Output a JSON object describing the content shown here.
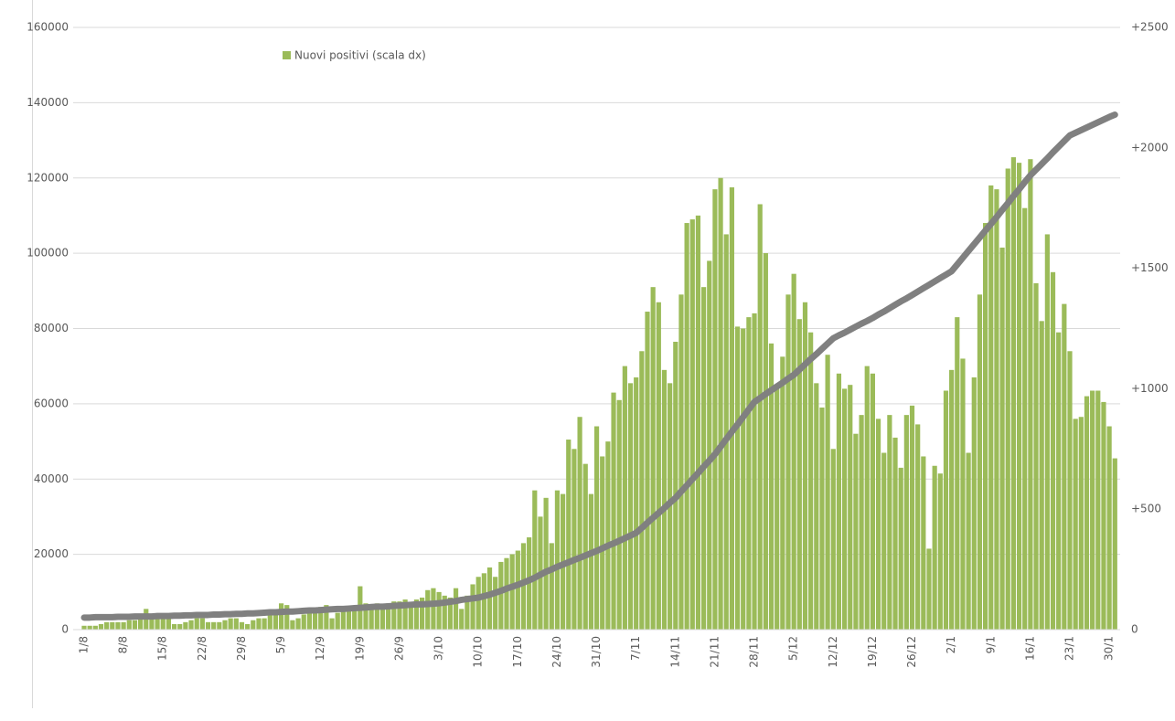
{
  "chart_data": {
    "type": "bar_line",
    "categories": [
      "1/8",
      null,
      null,
      null,
      null,
      null,
      null,
      "8/8",
      null,
      null,
      null,
      null,
      null,
      null,
      "15/8",
      null,
      null,
      null,
      null,
      null,
      null,
      "22/8",
      null,
      null,
      null,
      null,
      null,
      null,
      "29/8",
      null,
      null,
      null,
      null,
      null,
      null,
      "5/9",
      null,
      null,
      null,
      null,
      null,
      null,
      "12/9",
      null,
      null,
      null,
      null,
      null,
      null,
      "19/9",
      null,
      null,
      null,
      null,
      null,
      null,
      "26/9",
      null,
      null,
      null,
      null,
      null,
      null,
      "3/10",
      null,
      null,
      null,
      null,
      null,
      null,
      "10/10",
      null,
      null,
      null,
      null,
      null,
      null,
      "17/10",
      null,
      null,
      null,
      null,
      null,
      null,
      "24/10",
      null,
      null,
      null,
      null,
      null,
      null,
      "31/10",
      null,
      null,
      null,
      null,
      null,
      null,
      "7/11",
      null,
      null,
      null,
      null,
      null,
      null,
      "14/11",
      null,
      null,
      null,
      null,
      null,
      null,
      "21/11",
      null,
      null,
      null,
      null,
      null,
      null,
      "28/11",
      null,
      null,
      null,
      null,
      null,
      null,
      "5/12",
      null,
      null,
      null,
      null,
      null,
      null,
      "12/12",
      null,
      null,
      null,
      null,
      null,
      null,
      "19/12",
      null,
      null,
      null,
      null,
      null,
      null,
      "26/12",
      null,
      null,
      null,
      null,
      null,
      null,
      "2/1",
      null,
      null,
      null,
      null,
      null,
      null,
      "9/1",
      null,
      null,
      null,
      null,
      null,
      null,
      "16/1",
      null,
      null,
      null,
      null,
      null,
      null,
      "23/1",
      null,
      null,
      null,
      null,
      null,
      null,
      "30/1",
      null
    ],
    "series": [
      {
        "name": "Nuovi positivi (scala dx)",
        "type": "bar",
        "axis": "y2",
        "color": "#9bbb59",
        "values": [
          16,
          16,
          16,
          23,
          31,
          31,
          31,
          31,
          39,
          39,
          47,
          86,
          47,
          47,
          47,
          47,
          23,
          23,
          31,
          39,
          47,
          47,
          31,
          31,
          31,
          39,
          47,
          47,
          31,
          23,
          39,
          47,
          47,
          63,
          63,
          109,
          102,
          39,
          47,
          63,
          70,
          78,
          94,
          102,
          47,
          70,
          78,
          78,
          86,
          180,
          109,
          102,
          109,
          102,
          109,
          117,
          117,
          125,
          102,
          125,
          133,
          164,
          172,
          156,
          141,
          133,
          172,
          86,
          141,
          188,
          219,
          234,
          258,
          219,
          281,
          297,
          313,
          328,
          359,
          383,
          578,
          469,
          547,
          359,
          578,
          563,
          789,
          750,
          883,
          688,
          563,
          844,
          719,
          781,
          984,
          953,
          1094,
          1023,
          1047,
          1156,
          1320,
          1422,
          1359,
          1078,
          1023,
          1195,
          1391,
          1688,
          1703,
          1719,
          1422,
          1531,
          1828,
          1875,
          1641,
          1836,
          1258,
          1250,
          1297,
          1313,
          1766,
          1563,
          1188,
          1016,
          1133,
          1391,
          1477,
          1289,
          1359,
          1234,
          1023,
          922,
          1141,
          750,
          1063,
          1000,
          1016,
          813,
          891,
          1094,
          1063,
          875,
          734,
          891,
          797,
          672,
          891,
          930,
          852,
          719,
          336,
          680,
          648,
          992,
          1078,
          1297,
          1125,
          734,
          1047,
          1391,
          1688,
          1844,
          1828,
          1586,
          1914,
          1961,
          1938,
          1750,
          1953,
          1438,
          1281,
          1641,
          1484,
          1234,
          1352,
          1156,
          875,
          883,
          969,
          992,
          992,
          945,
          844,
          711
        ]
      },
      {
        "type": "line",
        "axis": "y",
        "color": "#808080",
        "values": [
          3200,
          3200,
          3300,
          3300,
          3300,
          3300,
          3400,
          3400,
          3400,
          3500,
          3500,
          3500,
          3500,
          3600,
          3600,
          3600,
          3700,
          3700,
          3800,
          3800,
          3900,
          3900,
          3900,
          4000,
          4000,
          4100,
          4100,
          4200,
          4200,
          4300,
          4300,
          4400,
          4500,
          4600,
          4600,
          4700,
          4800,
          4800,
          4900,
          5000,
          5100,
          5100,
          5200,
          5300,
          5400,
          5500,
          5500,
          5600,
          5700,
          5800,
          5900,
          6000,
          6100,
          6100,
          6200,
          6300,
          6400,
          6500,
          6600,
          6700,
          6700,
          6800,
          6900,
          7000,
          7200,
          7400,
          7600,
          7900,
          8100,
          8300,
          8500,
          8900,
          9300,
          9800,
          10300,
          10900,
          11400,
          11900,
          12500,
          13100,
          13800,
          14600,
          15400,
          16000,
          16700,
          17300,
          17900,
          18500,
          19100,
          19700,
          20300,
          20900,
          21600,
          22300,
          22900,
          23600,
          24300,
          25000,
          25700,
          27000,
          28400,
          29700,
          31000,
          32300,
          33700,
          35000,
          36700,
          38300,
          40000,
          41600,
          43300,
          44900,
          46600,
          48600,
          50600,
          52600,
          54500,
          56500,
          58500,
          60500,
          61500,
          62600,
          63600,
          64600,
          65600,
          66700,
          67700,
          69100,
          70500,
          71900,
          73200,
          74600,
          76000,
          77400,
          78200,
          78900,
          79700,
          80500,
          81300,
          82000,
          82800,
          83700,
          84500,
          85400,
          86300,
          87200,
          88000,
          88900,
          89800,
          90700,
          91600,
          92500,
          93400,
          94300,
          95200,
          97000,
          98800,
          100600,
          102400,
          104200,
          106000,
          107800,
          109600,
          111500,
          113300,
          115200,
          117000,
          118900,
          120700,
          122200,
          123700,
          125200,
          126800,
          128300,
          129800,
          131300,
          132000,
          132700,
          133400,
          134100,
          134800,
          135500,
          136200,
          136800
        ]
      }
    ],
    "ylim": [
      0,
      160000
    ],
    "yticks": [
      0,
      20000,
      40000,
      60000,
      80000,
      100000,
      120000,
      140000,
      160000
    ],
    "y2lim": [
      0,
      2500
    ],
    "y2ticks": [
      0,
      {
        "value": 500,
        "label": "+500"
      },
      {
        "value": 1000,
        "label": "+1000"
      },
      {
        "value": 1500,
        "label": "+1500"
      },
      {
        "value": 2000,
        "label": "+2000"
      },
      {
        "value": 2500,
        "label": "+2500"
      }
    ],
    "grid": true,
    "legend": "top"
  }
}
